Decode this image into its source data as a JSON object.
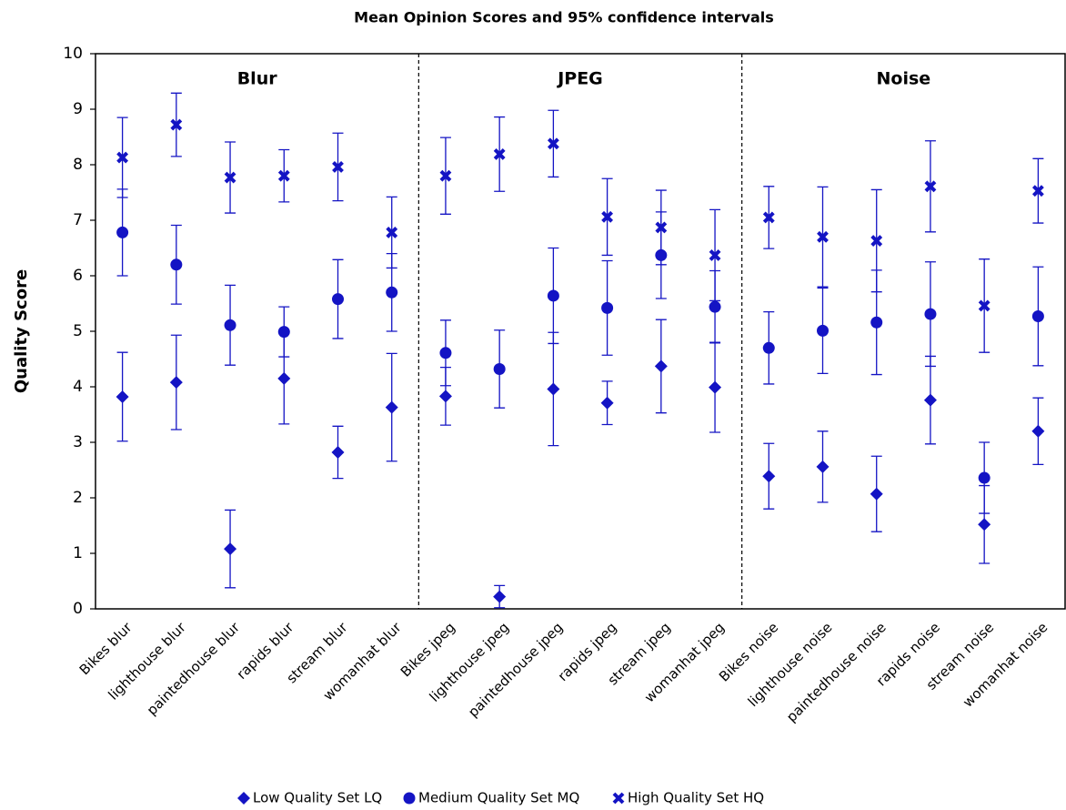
{
  "chart_data": {
    "type": "errorbar",
    "title": "Mean Opinion Scores and 95% confidence intervals",
    "y_label": "Quality Score",
    "sections": [
      "Blur",
      "JPEG",
      "Noise"
    ],
    "categories": [
      "Bikes blur",
      "lighthouse blur",
      "paintedhouse blur",
      "rapids blur",
      "stream blur",
      "womanhat blur",
      "Bikes jpeg",
      "lighthouse jpeg",
      "paintedhouse jpeg",
      "rapids jpeg",
      "stream jpeg",
      "womanhat jpeg",
      "Bikes noise",
      "lighthouse noise",
      "paintedhouse noise",
      "rapids noise",
      "stream noise",
      "womanhat noise"
    ],
    "series": [
      {
        "name": "Low Quality Set LQ",
        "color": "#1414c4",
        "marker": "diamond",
        "values": [
          3.82,
          4.08,
          1.08,
          4.15,
          2.82,
          3.63,
          3.83,
          0.22,
          3.96,
          3.71,
          4.37,
          3.99,
          2.39,
          2.56,
          2.07,
          3.76,
          1.52,
          3.2
        ],
        "errors": [
          0.8,
          0.85,
          0.7,
          0.82,
          0.47,
          0.97,
          0.52,
          0.2,
          1.02,
          0.39,
          0.84,
          0.81,
          0.59,
          0.64,
          0.68,
          0.79,
          0.7,
          0.6
        ]
      },
      {
        "name": "Medium Quality Set MQ",
        "color": "#1414c4",
        "marker": "circle",
        "values": [
          6.78,
          6.2,
          5.11,
          4.99,
          5.58,
          5.7,
          4.61,
          4.32,
          5.64,
          5.42,
          6.37,
          5.44,
          4.7,
          5.01,
          5.16,
          5.31,
          2.36,
          5.27
        ],
        "errors": [
          0.78,
          0.71,
          0.72,
          0.45,
          0.71,
          0.7,
          0.59,
          0.7,
          0.86,
          0.85,
          0.78,
          0.65,
          0.65,
          0.77,
          0.94,
          0.94,
          0.64,
          0.89
        ]
      },
      {
        "name": "High Quality Set HQ",
        "color": "#1414c4",
        "marker": "x",
        "values": [
          8.13,
          8.72,
          7.77,
          7.8,
          7.96,
          6.78,
          7.8,
          8.19,
          8.38,
          7.06,
          6.87,
          6.37,
          7.05,
          6.7,
          6.63,
          7.61,
          5.46,
          7.53
        ],
        "errors": [
          0.72,
          0.57,
          0.64,
          0.47,
          0.61,
          0.64,
          0.69,
          0.67,
          0.6,
          0.69,
          0.67,
          0.82,
          0.56,
          0.9,
          0.92,
          0.82,
          0.84,
          0.58
        ]
      }
    ],
    "ylim": [
      0,
      10
    ],
    "yticks": [
      0,
      1,
      2,
      3,
      4,
      5,
      6,
      7,
      8,
      9,
      10
    ]
  }
}
